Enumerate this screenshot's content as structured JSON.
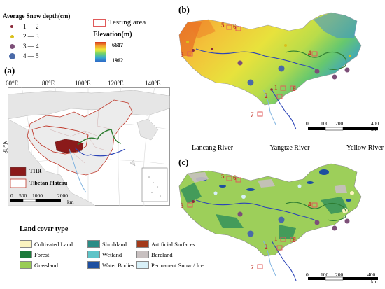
{
  "panels": {
    "a": "(a)",
    "b": "(b)",
    "c": "(c)"
  },
  "snow_legend": {
    "title": "Average Snow depth(cm)",
    "classes": [
      {
        "label": "1 — 2",
        "color": "#8b2a3a"
      },
      {
        "label": "2 — 3",
        "color": "#d9c01c"
      },
      {
        "label": "3 — 4",
        "color": "#7d4f78"
      },
      {
        "label": "4 — 5",
        "color": "#4a6aa8"
      }
    ]
  },
  "testing_area": {
    "label": "Testing area",
    "color": "#e05a5a"
  },
  "elevation_legend": {
    "title": "Elevation(m)",
    "max": "6617",
    "min": "1962"
  },
  "overview": {
    "lon_labels": [
      "60°E",
      "80°E",
      "100°E",
      "120°E",
      "140°E"
    ],
    "lat_label": "30°N",
    "thr_label": "THR",
    "plateau_label": "Tibetan Plateau",
    "scale_labels": [
      "0",
      "500",
      "1000",
      "2000"
    ],
    "scale_unit": "km"
  },
  "map_scale": {
    "labels": [
      "0",
      "100",
      "200",
      "400"
    ],
    "unit": "km"
  },
  "site_ids": [
    "1",
    "2",
    "3",
    "4",
    "5",
    "6",
    "7",
    "8"
  ],
  "rivers": [
    {
      "name": "Lancang River",
      "color": "#7fb3e0"
    },
    {
      "name": "Yangtze River",
      "color": "#2b44b8"
    },
    {
      "name": "Yellow River",
      "color": "#3c8a2e"
    }
  ],
  "land_cover": {
    "title": "Land cover type",
    "items": [
      {
        "label": "Cultivated Land",
        "color": "#fbf3c0"
      },
      {
        "label": "Forest",
        "color": "#1b7a3a"
      },
      {
        "label": "Grassland",
        "color": "#99cc55"
      },
      {
        "label": "Shrubland",
        "color": "#2a8c86"
      },
      {
        "label": "Wetland",
        "color": "#5fc4c8"
      },
      {
        "label": "Water Bodies",
        "color": "#1d4fa0"
      },
      {
        "label": "Artificial Surfaces",
        "color": "#a33a1a"
      },
      {
        "label": "Bareland",
        "color": "#c8c0c0"
      },
      {
        "label": "Permanent Snow / Ice",
        "color": "#d8f0f8"
      }
    ]
  }
}
